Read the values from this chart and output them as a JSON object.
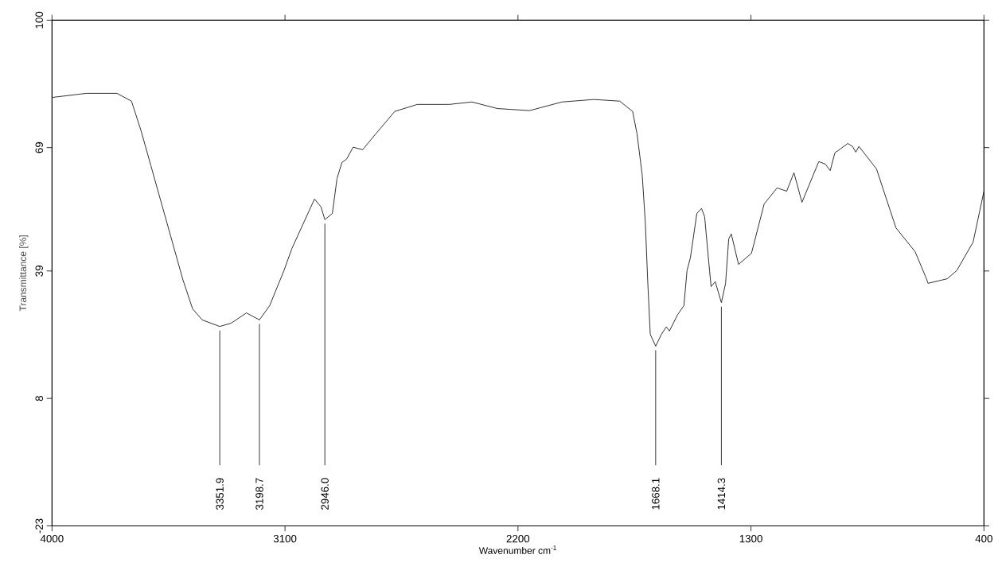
{
  "chart_data": {
    "type": "line",
    "xlabel": "Wavenumber cm$^{-1}$",
    "ylabel": "Transmittance [%]",
    "xlim": [
      4000,
      400
    ],
    "ylim": [
      -23,
      100
    ],
    "xticks": [
      4000,
      3100,
      2200,
      1300,
      400
    ],
    "yticks": [
      -23,
      8,
      39,
      69,
      100
    ],
    "color": "#222222",
    "line_style": "solid",
    "marker": "none",
    "x": [
      4000,
      3867,
      3749,
      3693,
      3656,
      3618,
      3556,
      3494,
      3457,
      3420,
      3351.9,
      3308,
      3249,
      3198.7,
      3159,
      3104,
      3073,
      2986,
      2961,
      2946.0,
      2917,
      2899,
      2880,
      2862,
      2837,
      2800,
      2750,
      2676,
      2589,
      2465,
      2378,
      2279,
      2155,
      2030,
      1906,
      1807,
      1757,
      1740,
      1720,
      1708,
      1699,
      1689,
      1668.1,
      1646,
      1627,
      1615,
      1584,
      1559,
      1547,
      1534,
      1509,
      1491,
      1479,
      1460,
      1454,
      1438,
      1414.3,
      1398,
      1386,
      1376,
      1348,
      1298,
      1249,
      1199,
      1162,
      1134,
      1103,
      1038,
      1013,
      994,
      976,
      926,
      908,
      895,
      883,
      815,
      740,
      666,
      622,
      616,
      542,
      505,
      442,
      400
    ],
    "values": [
      81.2,
      82.2,
      82.2,
      80.3,
      73.1,
      64.6,
      50.7,
      36.8,
      29.8,
      27.1,
      25.5,
      26.3,
      28.8,
      27.1,
      30.6,
      39.1,
      44.5,
      56.5,
      54.6,
      51.5,
      53.0,
      61.5,
      65.4,
      66.2,
      69.1,
      68.5,
      72.3,
      77.8,
      79.5,
      79.5,
      80.1,
      78.5,
      78.0,
      80.1,
      80.7,
      80.3,
      77.8,
      72.3,
      62.3,
      50.7,
      36.8,
      23.6,
      20.7,
      23.6,
      25.4,
      24.4,
      28.3,
      30.6,
      39.1,
      42.2,
      53.0,
      54.2,
      52.2,
      39.1,
      35.2,
      36.4,
      31.3,
      36.0,
      46.8,
      48.0,
      40.6,
      43.3,
      55.3,
      59.2,
      58.4,
      62.9,
      55.7,
      65.6,
      65.0,
      63.4,
      67.7,
      70.0,
      69.3,
      67.9,
      69.3,
      63.8,
      49.5,
      43.7,
      37.1,
      36.0,
      37.1,
      39.1,
      46.0,
      58.4
    ],
    "annotations": [
      {
        "text": "3351.9",
        "x": 3351.9,
        "y": 25.5
      },
      {
        "text": "3198.7",
        "x": 3198.7,
        "y": 27.1
      },
      {
        "text": "2946.0",
        "x": 2946.0,
        "y": 51.5
      },
      {
        "text": "1668.1",
        "x": 1668.1,
        "y": 20.7
      },
      {
        "text": "1414.3",
        "x": 1414.3,
        "y": 31.3
      }
    ],
    "grid": false
  }
}
